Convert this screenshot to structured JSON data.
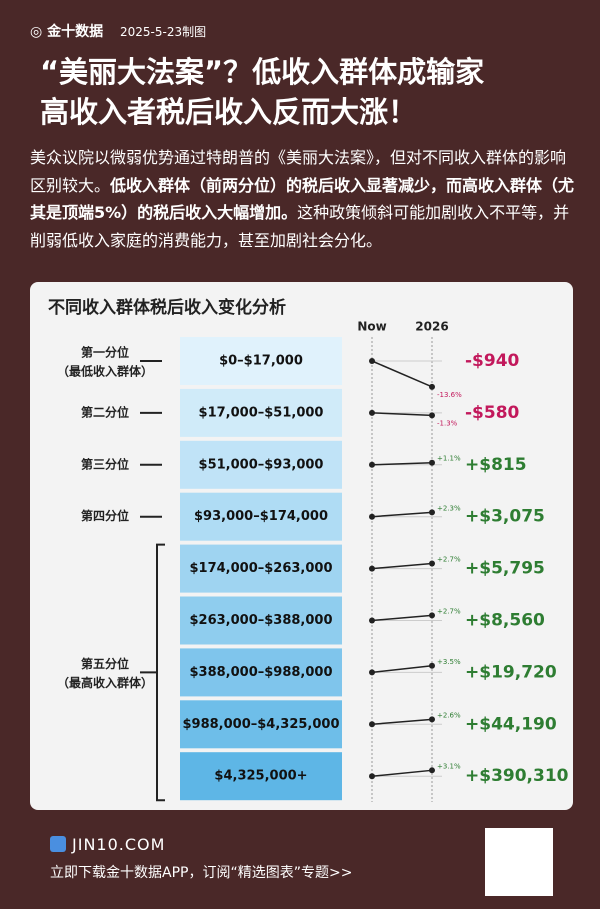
{
  "header": {
    "brand": "金十数据",
    "date": "2025-5-23制图"
  },
  "title_lines": [
    "“美丽大法案”？低收入群体成输家",
    "高收入者税后收入反而大涨！"
  ],
  "intro": [
    {
      "text": "美众议院以微弱优势通过特朗普的《美丽大法案》，但对不同收入群体的影响区别较大。",
      "bold": false
    },
    {
      "text": "低收入群体（前两分位）的税后收入显著减少，而高收入群体（尤其是顶端5%）的税后收入大幅增加。",
      "bold": true
    },
    {
      "text": "这种政策倾斜可能加剧收入不平等，并削弱低收入家庭的消费能力，甚至加剧社会分化。",
      "bold": false
    }
  ],
  "chart_data": {
    "type": "slope",
    "title": "不同收入群体税后收入变化分析",
    "x_labels": [
      "Now",
      "2026"
    ],
    "group_labels": [
      "第一分位",
      "第二分位",
      "第三分位",
      "第四分位",
      null,
      null,
      "第五分位",
      null,
      null
    ],
    "group_sublabels": [
      "（最低收入群体）",
      null,
      null,
      null,
      null,
      null,
      "（最高收入群体）",
      null,
      null
    ],
    "categories": [
      "$0–$17,000",
      "$17,000–$51,000",
      "$51,000–$93,000",
      "$93,000–$174,000",
      "$174,000–$263,000",
      "$263,000–$388,000",
      "$388,000–$988,000",
      "$988,000–$4,325,000",
      "$4,325,000+"
    ],
    "pct_change": {
      "values": [
        -13.6,
        -1.3,
        1.1,
        2.3,
        2.7,
        2.7,
        3.5,
        2.6,
        3.1
      ],
      "value_labels": [
        "-13.6%",
        "-1.3%",
        "+1.1%",
        "+2.3%",
        "+2.7%",
        "+2.7%",
        "+3.5%",
        "+2.6%",
        "+3.1%"
      ]
    },
    "dollar_change": {
      "values": [
        -940,
        -580,
        815,
        3075,
        5795,
        8560,
        19720,
        44190,
        390310
      ],
      "value_labels": [
        "-$940",
        "-$580",
        "+$815",
        "+$3,075",
        "+$5,795",
        "+$8,560",
        "+$19,720",
        "+$44,190",
        "+$390,310"
      ]
    },
    "negative_color": "#c2185b",
    "positive_color": "#2e7d32"
  },
  "footer": {
    "url": "JIN10.COM",
    "cta": "立即下载金十数据APP，订阅“精选图表”专题>>"
  }
}
